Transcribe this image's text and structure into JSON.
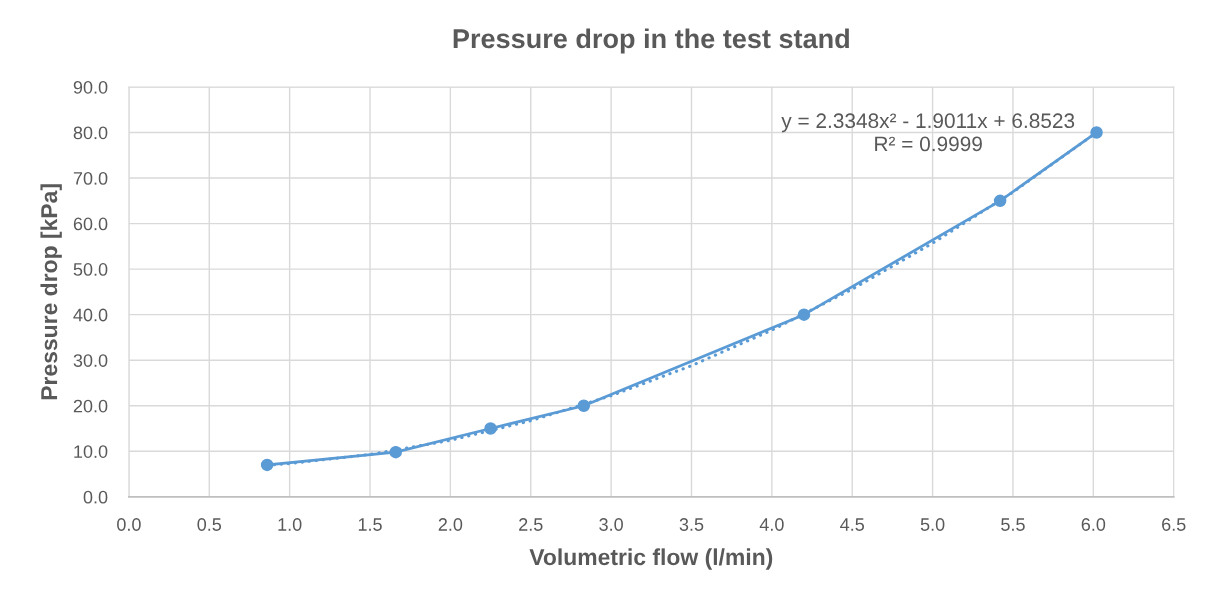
{
  "chart_data": {
    "type": "line",
    "title": "Pressure drop in the test stand",
    "xlabel": "Volumetric flow (l/min)",
    "ylabel": "Pressure drop [kPa]",
    "series": [
      {
        "color": "#5b9bd5",
        "marker": "none",
        "line_style": "dotted",
        "x": [
          0.86,
          1.0,
          1.5,
          2.0,
          2.5,
          3.0,
          3.5,
          4.0,
          4.5,
          5.0,
          5.5,
          6.02
        ],
        "values": [
          6.9,
          7.3,
          9.3,
          12.4,
          16.7,
          22.2,
          28.8,
          36.6,
          45.6,
          55.7,
          66.9,
          80.0
        ]
      },
      {
        "color": "#5b9bd5",
        "marker": "circle",
        "line_style": "solid",
        "x": [
          0.86,
          1.66,
          2.25,
          2.83,
          4.2,
          5.42,
          6.02
        ],
        "values": [
          7.0,
          9.8,
          15.0,
          20.0,
          40.0,
          65.0,
          80.0
        ]
      }
    ],
    "xlim": [
      0,
      6.5
    ],
    "xticks": [
      {
        "value": 0,
        "label": "0.0"
      },
      {
        "value": 0.5,
        "label": "0.5"
      },
      {
        "value": 1,
        "label": "1.0"
      },
      {
        "value": 1.5,
        "label": "1.5"
      },
      {
        "value": 2,
        "label": "2.0"
      },
      {
        "value": 2.5,
        "label": "2.5"
      },
      {
        "value": 3,
        "label": "3.0"
      },
      {
        "value": 3.5,
        "label": "3.5"
      },
      {
        "value": 4,
        "label": "4.0"
      },
      {
        "value": 4.5,
        "label": "4.5"
      },
      {
        "value": 5,
        "label": "5.0"
      },
      {
        "value": 5.5,
        "label": "5.5"
      },
      {
        "value": 6,
        "label": "6.0"
      },
      {
        "value": 6.5,
        "label": "6.5"
      }
    ],
    "ylim": [
      0,
      90
    ],
    "yticks": [
      {
        "value": 0,
        "label": "0.0"
      },
      {
        "value": 10,
        "label": "10.0"
      },
      {
        "value": 20,
        "label": "20.0"
      },
      {
        "value": 30,
        "label": "30.0"
      },
      {
        "value": 40,
        "label": "40.0"
      },
      {
        "value": 50,
        "label": "50.0"
      },
      {
        "value": 60,
        "label": "60.0"
      },
      {
        "value": 70,
        "label": "70.0"
      },
      {
        "value": 80,
        "label": "80.0"
      },
      {
        "value": 90,
        "label": "90.0"
      }
    ],
    "grid": true,
    "annotations": [
      "y = 2.3348x² - 1.9011x + 6.8523\nR² = 0.9999"
    ]
  }
}
